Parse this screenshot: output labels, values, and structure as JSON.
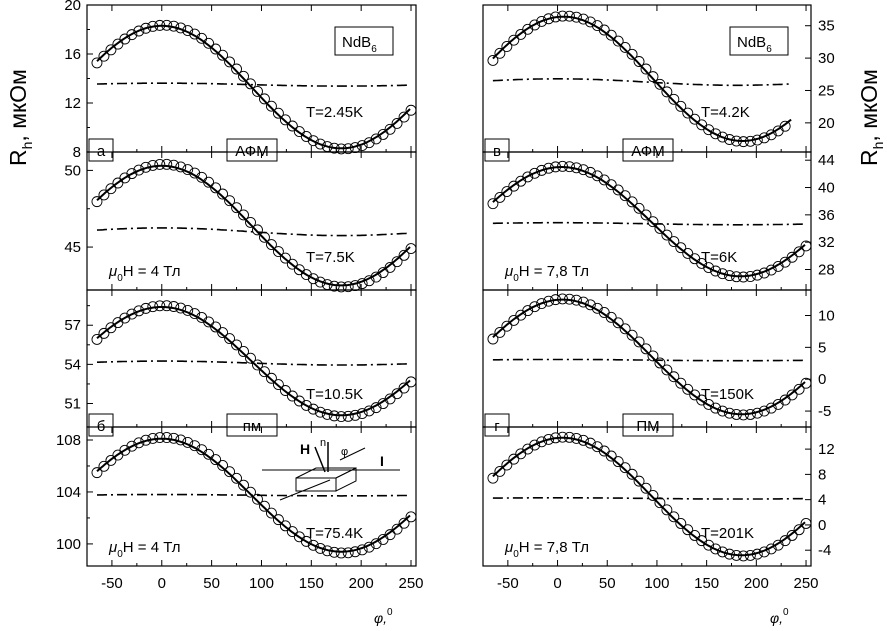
{
  "figure": {
    "y_label_left": {
      "main": "R",
      "sub": "h",
      "unit": ", мкОм"
    },
    "y_label_right": {
      "main": "R",
      "sub": "h",
      "unit": ", мкОм"
    },
    "x_label": {
      "main": "φ,",
      "sup": "0"
    }
  },
  "chart_data": [
    {
      "id": "a",
      "type": "line",
      "column": "left",
      "row": 0,
      "material": {
        "main": "NdB",
        "sub": "6"
      },
      "panel_letter": "а",
      "phase_label": "АФМ",
      "temperature_label": "T=2.45K",
      "field_label": null,
      "xlim": [
        -75,
        255
      ],
      "ylim": [
        8,
        20
      ],
      "y_axis_side": "left",
      "xticks": [
        -50,
        0,
        50,
        100,
        150,
        200,
        250
      ],
      "yticks": [
        8,
        12,
        16,
        20
      ],
      "yminor": [
        10,
        14,
        18
      ],
      "series": [
        {
          "name": "fit",
          "style": "solid",
          "offset": 13.3,
          "amp": 5.0,
          "phase": 0,
          "x": [
            -65,
            250
          ]
        },
        {
          "name": "even component",
          "style": "dashdot",
          "offset": 13.5,
          "amp": 0.12,
          "phase": 0,
          "x": [
            -65,
            250
          ]
        },
        {
          "name": "experiment",
          "style": "circles",
          "offset": 13.3,
          "amp": 5.05,
          "phase": 2,
          "x": [
            -65,
            250
          ],
          "step": 7
        }
      ]
    },
    {
      "id": "b1",
      "type": "line",
      "column": "left",
      "row": 1,
      "material": null,
      "panel_letter": null,
      "phase_label": null,
      "temperature_label": "T=7.5K",
      "field_label": {
        "pre": "μ",
        "sub": "0",
        "post": "H = 4 Тл"
      },
      "xlim": [
        -75,
        255
      ],
      "ylim": [
        42.2,
        51.2
      ],
      "y_axis_side": "left",
      "xticks": [
        -50,
        0,
        50,
        100,
        150,
        200,
        250
      ],
      "yticks": [
        45,
        50
      ],
      "yminor": [
        47.5
      ],
      "series": [
        {
          "name": "fit",
          "style": "solid",
          "offset": 46.4,
          "amp": 3.9,
          "phase": 0,
          "x": [
            -65,
            250
          ]
        },
        {
          "name": "even component",
          "style": "dashdot",
          "offset": 46.0,
          "amp": 0.25,
          "phase": 0,
          "x": [
            -65,
            250
          ]
        },
        {
          "name": "experiment",
          "style": "circles",
          "offset": 46.4,
          "amp": 4.0,
          "phase": 2,
          "x": [
            -65,
            250
          ],
          "step": 7
        }
      ]
    },
    {
      "id": "b2",
      "type": "line",
      "column": "left",
      "row": 2,
      "material": null,
      "panel_letter": "б",
      "phase_label": "пм",
      "temperature_label": "T=10.5K",
      "field_label": null,
      "xlim": [
        -75,
        255
      ],
      "ylim": [
        49.2,
        59.7
      ],
      "y_axis_side": "left",
      "xticks": [
        -50,
        0,
        50,
        100,
        150,
        200,
        250
      ],
      "yticks": [
        51,
        54,
        57
      ],
      "yminor": [
        52.5,
        55.5,
        58.5
      ],
      "series": [
        {
          "name": "fit",
          "style": "solid",
          "offset": 54.25,
          "amp": 4.15,
          "phase": 0,
          "x": [
            -65,
            250
          ]
        },
        {
          "name": "even component",
          "style": "dashdot",
          "offset": 54.1,
          "amp": 0.15,
          "phase": 0,
          "x": [
            -65,
            250
          ]
        },
        {
          "name": "experiment",
          "style": "circles",
          "offset": 54.25,
          "amp": 4.25,
          "phase": 2,
          "x": [
            -65,
            250
          ],
          "step": 7
        }
      ]
    },
    {
      "id": "b3",
      "type": "line",
      "column": "left",
      "row": 3,
      "material": null,
      "panel_letter": null,
      "phase_label": null,
      "temperature_label": "T=75.4K",
      "field_label": {
        "pre": "μ",
        "sub": "0",
        "post": "H = 4 Тл"
      },
      "xlim": [
        -75,
        255
      ],
      "ylim": [
        98.3,
        109.0
      ],
      "y_axis_side": "left",
      "xticks": [
        -50,
        0,
        50,
        100,
        150,
        200,
        250
      ],
      "yticks": [
        100,
        104,
        108
      ],
      "yminor": [
        102,
        106
      ],
      "inset": {
        "h": "H",
        "n": "n",
        "phi": "φ",
        "i": "I"
      },
      "series": [
        {
          "name": "fit",
          "style": "solid",
          "offset": 103.75,
          "amp": 4.35,
          "phase": 0,
          "x": [
            -65,
            250
          ]
        },
        {
          "name": "even component",
          "style": "dashdot",
          "offset": 103.75,
          "amp": 0.05,
          "phase": 0,
          "x": [
            -65,
            250
          ]
        },
        {
          "name": "experiment",
          "style": "circles",
          "offset": 103.75,
          "amp": 4.45,
          "phase": 2,
          "x": [
            -65,
            250
          ],
          "step": 7
        }
      ]
    },
    {
      "id": "v",
      "type": "line",
      "column": "right",
      "row": 0,
      "material": {
        "main": "NdB",
        "sub": "6"
      },
      "panel_letter": "в",
      "phase_label": "АФМ",
      "temperature_label": "T=4.2K",
      "field_label": null,
      "xlim": [
        -75,
        255
      ],
      "ylim": [
        15.5,
        38.2
      ],
      "y_axis_side": "right",
      "xticks": [
        -50,
        0,
        50,
        100,
        150,
        200,
        250
      ],
      "yticks": [
        20,
        25,
        30,
        35
      ],
      "yminor": [],
      "series": [
        {
          "name": "fit",
          "style": "solid",
          "offset": 26.8,
          "amp": 9.6,
          "phase": 6,
          "x": [
            -65,
            235
          ]
        },
        {
          "name": "even component",
          "style": "dashdot",
          "offset": 26.3,
          "amp": 0.5,
          "phase": 0,
          "x": [
            -65,
            235
          ]
        },
        {
          "name": "experiment",
          "style": "circles",
          "offset": 26.8,
          "amp": 9.7,
          "phase": 8,
          "x": [
            -65,
            235
          ],
          "step": 7
        }
      ]
    },
    {
      "id": "v2",
      "type": "line",
      "column": "right",
      "row": 1,
      "material": null,
      "panel_letter": null,
      "phase_label": null,
      "temperature_label": "T=6K",
      "field_label": {
        "pre": "μ",
        "sub": "0",
        "post": "H = 7,8 Тл"
      },
      "xlim": [
        -75,
        255
      ],
      "ylim": [
        25,
        45.2
      ],
      "y_axis_side": "right",
      "xticks": [
        -50,
        0,
        50,
        100,
        150,
        200,
        250
      ],
      "yticks": [
        28,
        32,
        36,
        40,
        44
      ],
      "yminor": [],
      "series": [
        {
          "name": "fit",
          "style": "solid",
          "offset": 35.0,
          "amp": 8.0,
          "phase": 4,
          "x": [
            -65,
            250
          ]
        },
        {
          "name": "even component",
          "style": "dashdot",
          "offset": 34.7,
          "amp": 0.15,
          "phase": 0,
          "x": [
            -65,
            250
          ]
        },
        {
          "name": "experiment",
          "style": "circles",
          "offset": 35.0,
          "amp": 8.1,
          "phase": 6,
          "x": [
            -65,
            250
          ],
          "step": 7
        }
      ]
    },
    {
      "id": "g1",
      "type": "line",
      "column": "right",
      "row": 2,
      "material": null,
      "panel_letter": "г",
      "phase_label": "ПМ",
      "temperature_label": "T=150K",
      "field_label": null,
      "xlim": [
        -75,
        255
      ],
      "ylim": [
        -7.5,
        14
      ],
      "y_axis_side": "right",
      "xticks": [
        -50,
        0,
        50,
        100,
        150,
        200,
        250
      ],
      "yticks": [
        -5,
        0,
        5,
        10
      ],
      "yminor": [],
      "series": [
        {
          "name": "fit",
          "style": "solid",
          "offset": 3.5,
          "amp": 9.0,
          "phase": 5,
          "x": [
            -65,
            250
          ]
        },
        {
          "name": "even component",
          "style": "dashdot",
          "offset": 3.0,
          "amp": 0.1,
          "phase": 0,
          "x": [
            -65,
            250
          ]
        },
        {
          "name": "experiment",
          "style": "circles",
          "offset": 3.5,
          "amp": 9.1,
          "phase": 7,
          "x": [
            -65,
            250
          ],
          "step": 7
        }
      ]
    },
    {
      "id": "g2",
      "type": "line",
      "column": "right",
      "row": 3,
      "material": null,
      "panel_letter": null,
      "phase_label": null,
      "temperature_label": "T=201K",
      "field_label": {
        "pre": "μ",
        "sub": "0",
        "post": "H = 7,8 Тл"
      },
      "xlim": [
        -75,
        255
      ],
      "ylim": [
        -6.5,
        15.5
      ],
      "y_axis_side": "right",
      "xticks": [
        -50,
        0,
        50,
        100,
        150,
        200,
        250
      ],
      "yticks": [
        -4,
        0,
        4,
        8,
        12
      ],
      "yminor": [],
      "series": [
        {
          "name": "fit",
          "style": "solid",
          "offset": 4.5,
          "amp": 9.3,
          "phase": 5,
          "x": [
            -65,
            250
          ]
        },
        {
          "name": "even component",
          "style": "dashdot",
          "offset": 4.2,
          "amp": 0.1,
          "phase": 0,
          "x": [
            -65,
            250
          ]
        },
        {
          "name": "experiment",
          "style": "circles",
          "offset": 4.5,
          "amp": 9.4,
          "phase": 7,
          "x": [
            -65,
            250
          ],
          "step": 7
        }
      ]
    }
  ]
}
